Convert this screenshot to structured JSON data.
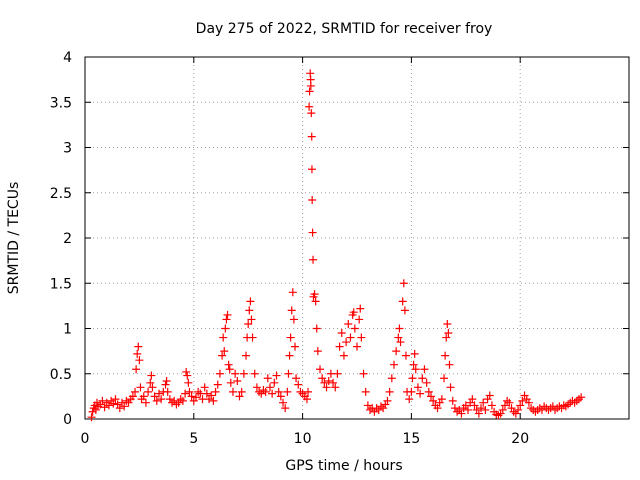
{
  "chart_data": {
    "type": "scatter",
    "title": "Day 275 of 2022, SRMTID for receiver froy",
    "xlabel": "GPS time / hours",
    "ylabel": "SRMTID / TECUs",
    "xlim": [
      0,
      25
    ],
    "ylim": [
      0,
      4
    ],
    "x_ticks": [
      0,
      5,
      10,
      15,
      20
    ],
    "x_tick_labels": [
      "0",
      "5",
      "10",
      "15",
      "20"
    ],
    "y_ticks": [
      0,
      0.5,
      1,
      1.5,
      2,
      2.5,
      3,
      3.5,
      4
    ],
    "y_tick_labels": [
      "0",
      "0.5",
      "1",
      "1.5",
      "2",
      "2.5",
      "3",
      "3.5",
      "4"
    ],
    "grid": true,
    "marker": "+",
    "series_color": "#ff0000",
    "points": [
      [
        0.3,
        0.02
      ],
      [
        0.35,
        0.08
      ],
      [
        0.4,
        0.12
      ],
      [
        0.45,
        0.15
      ],
      [
        0.5,
        0.1
      ],
      [
        0.55,
        0.18
      ],
      [
        0.6,
        0.14
      ],
      [
        0.7,
        0.16
      ],
      [
        0.8,
        0.2
      ],
      [
        0.9,
        0.13
      ],
      [
        1.0,
        0.18
      ],
      [
        1.1,
        0.15
      ],
      [
        1.2,
        0.2
      ],
      [
        1.3,
        0.17
      ],
      [
        1.4,
        0.22
      ],
      [
        1.5,
        0.16
      ],
      [
        1.6,
        0.12
      ],
      [
        1.7,
        0.18
      ],
      [
        1.8,
        0.14
      ],
      [
        1.9,
        0.2
      ],
      [
        2.0,
        0.18
      ],
      [
        2.1,
        0.22
      ],
      [
        2.2,
        0.25
      ],
      [
        2.3,
        0.3
      ],
      [
        2.35,
        0.55
      ],
      [
        2.4,
        0.72
      ],
      [
        2.45,
        0.8
      ],
      [
        2.5,
        0.65
      ],
      [
        2.55,
        0.35
      ],
      [
        2.6,
        0.22
      ],
      [
        2.7,
        0.25
      ],
      [
        2.8,
        0.18
      ],
      [
        2.9,
        0.3
      ],
      [
        3.0,
        0.4
      ],
      [
        3.05,
        0.48
      ],
      [
        3.1,
        0.35
      ],
      [
        3.2,
        0.25
      ],
      [
        3.3,
        0.2
      ],
      [
        3.4,
        0.28
      ],
      [
        3.5,
        0.22
      ],
      [
        3.6,
        0.3
      ],
      [
        3.7,
        0.38
      ],
      [
        3.75,
        0.42
      ],
      [
        3.8,
        0.3
      ],
      [
        3.9,
        0.22
      ],
      [
        4.0,
        0.18
      ],
      [
        4.1,
        0.2
      ],
      [
        4.2,
        0.16
      ],
      [
        4.3,
        0.18
      ],
      [
        4.4,
        0.22
      ],
      [
        4.5,
        0.2
      ],
      [
        4.6,
        0.28
      ],
      [
        4.65,
        0.52
      ],
      [
        4.7,
        0.48
      ],
      [
        4.75,
        0.4
      ],
      [
        4.8,
        0.3
      ],
      [
        4.9,
        0.25
      ],
      [
        5.0,
        0.2
      ],
      [
        5.1,
        0.24
      ],
      [
        5.2,
        0.3
      ],
      [
        5.3,
        0.28
      ],
      [
        5.4,
        0.22
      ],
      [
        5.5,
        0.35
      ],
      [
        5.6,
        0.28
      ],
      [
        5.7,
        0.22
      ],
      [
        5.8,
        0.26
      ],
      [
        5.9,
        0.2
      ],
      [
        6.0,
        0.3
      ],
      [
        6.1,
        0.38
      ],
      [
        6.2,
        0.5
      ],
      [
        6.3,
        0.7
      ],
      [
        6.35,
        0.9
      ],
      [
        6.4,
        0.75
      ],
      [
        6.45,
        1.0
      ],
      [
        6.5,
        1.1
      ],
      [
        6.55,
        1.15
      ],
      [
        6.6,
        0.6
      ],
      [
        6.65,
        0.55
      ],
      [
        6.7,
        0.4
      ],
      [
        6.8,
        0.3
      ],
      [
        6.9,
        0.5
      ],
      [
        7.0,
        0.42
      ],
      [
        7.1,
        0.25
      ],
      [
        7.2,
        0.3
      ],
      [
        7.3,
        0.5
      ],
      [
        7.4,
        0.7
      ],
      [
        7.45,
        0.9
      ],
      [
        7.5,
        1.05
      ],
      [
        7.55,
        1.2
      ],
      [
        7.6,
        1.3
      ],
      [
        7.65,
        1.1
      ],
      [
        7.7,
        0.9
      ],
      [
        7.8,
        0.5
      ],
      [
        7.9,
        0.35
      ],
      [
        8.0,
        0.3
      ],
      [
        8.1,
        0.28
      ],
      [
        8.2,
        0.32
      ],
      [
        8.3,
        0.3
      ],
      [
        8.4,
        0.45
      ],
      [
        8.5,
        0.35
      ],
      [
        8.6,
        0.28
      ],
      [
        8.7,
        0.4
      ],
      [
        8.8,
        0.48
      ],
      [
        8.9,
        0.3
      ],
      [
        9.0,
        0.25
      ],
      [
        9.1,
        0.18
      ],
      [
        9.2,
        0.12
      ],
      [
        9.3,
        0.3
      ],
      [
        9.35,
        0.5
      ],
      [
        9.4,
        0.7
      ],
      [
        9.45,
        0.9
      ],
      [
        9.5,
        1.2
      ],
      [
        9.55,
        1.4
      ],
      [
        9.6,
        1.1
      ],
      [
        9.65,
        0.8
      ],
      [
        9.7,
        0.45
      ],
      [
        9.8,
        0.38
      ],
      [
        9.9,
        0.3
      ],
      [
        10.0,
        0.28
      ],
      [
        10.1,
        0.25
      ],
      [
        10.2,
        0.22
      ],
      [
        10.25,
        0.3
      ],
      [
        10.3,
        3.45
      ],
      [
        10.32,
        3.62
      ],
      [
        10.35,
        3.82
      ],
      [
        10.37,
        3.75
      ],
      [
        10.38,
        3.68
      ],
      [
        10.4,
        3.38
      ],
      [
        10.42,
        3.12
      ],
      [
        10.43,
        2.76
      ],
      [
        10.44,
        2.42
      ],
      [
        10.46,
        2.06
      ],
      [
        10.48,
        1.76
      ],
      [
        10.5,
        1.35
      ],
      [
        10.55,
        1.38
      ],
      [
        10.6,
        1.3
      ],
      [
        10.65,
        1.0
      ],
      [
        10.7,
        0.75
      ],
      [
        10.8,
        0.55
      ],
      [
        10.9,
        0.45
      ],
      [
        11.0,
        0.4
      ],
      [
        11.1,
        0.35
      ],
      [
        11.2,
        0.42
      ],
      [
        11.3,
        0.5
      ],
      [
        11.4,
        0.4
      ],
      [
        11.5,
        0.35
      ],
      [
        11.6,
        0.5
      ],
      [
        11.7,
        0.8
      ],
      [
        11.8,
        0.95
      ],
      [
        11.9,
        0.7
      ],
      [
        12.0,
        0.85
      ],
      [
        12.1,
        1.05
      ],
      [
        12.2,
        0.9
      ],
      [
        12.3,
        1.15
      ],
      [
        12.35,
        1.18
      ],
      [
        12.4,
        1.0
      ],
      [
        12.5,
        0.8
      ],
      [
        12.6,
        1.1
      ],
      [
        12.65,
        1.22
      ],
      [
        12.7,
        0.9
      ],
      [
        12.8,
        0.5
      ],
      [
        12.9,
        0.3
      ],
      [
        13.0,
        0.15
      ],
      [
        13.1,
        0.1
      ],
      [
        13.2,
        0.12
      ],
      [
        13.3,
        0.08
      ],
      [
        13.4,
        0.12
      ],
      [
        13.5,
        0.1
      ],
      [
        13.6,
        0.14
      ],
      [
        13.7,
        0.12
      ],
      [
        13.8,
        0.16
      ],
      [
        13.9,
        0.2
      ],
      [
        14.0,
        0.3
      ],
      [
        14.1,
        0.45
      ],
      [
        14.2,
        0.6
      ],
      [
        14.3,
        0.75
      ],
      [
        14.4,
        0.9
      ],
      [
        14.45,
        1.0
      ],
      [
        14.5,
        0.85
      ],
      [
        14.6,
        1.3
      ],
      [
        14.65,
        1.5
      ],
      [
        14.7,
        1.2
      ],
      [
        14.75,
        0.7
      ],
      [
        14.8,
        0.3
      ],
      [
        14.9,
        0.22
      ],
      [
        15.0,
        0.3
      ],
      [
        15.05,
        0.45
      ],
      [
        15.1,
        0.6
      ],
      [
        15.15,
        0.72
      ],
      [
        15.2,
        0.55
      ],
      [
        15.3,
        0.35
      ],
      [
        15.4,
        0.28
      ],
      [
        15.5,
        0.45
      ],
      [
        15.6,
        0.55
      ],
      [
        15.7,
        0.4
      ],
      [
        15.8,
        0.3
      ],
      [
        15.9,
        0.25
      ],
      [
        16.0,
        0.2
      ],
      [
        16.1,
        0.15
      ],
      [
        16.2,
        0.12
      ],
      [
        16.3,
        0.18
      ],
      [
        16.4,
        0.22
      ],
      [
        16.5,
        0.45
      ],
      [
        16.55,
        0.7
      ],
      [
        16.6,
        0.9
      ],
      [
        16.65,
        1.05
      ],
      [
        16.7,
        0.95
      ],
      [
        16.75,
        0.6
      ],
      [
        16.8,
        0.35
      ],
      [
        16.9,
        0.2
      ],
      [
        17.0,
        0.12
      ],
      [
        17.1,
        0.08
      ],
      [
        17.2,
        0.1
      ],
      [
        17.3,
        0.06
      ],
      [
        17.4,
        0.12
      ],
      [
        17.5,
        0.15
      ],
      [
        17.6,
        0.1
      ],
      [
        17.7,
        0.18
      ],
      [
        17.8,
        0.22
      ],
      [
        17.9,
        0.15
      ],
      [
        18.0,
        0.1
      ],
      [
        18.1,
        0.06
      ],
      [
        18.2,
        0.12
      ],
      [
        18.3,
        0.18
      ],
      [
        18.4,
        0.1
      ],
      [
        18.5,
        0.22
      ],
      [
        18.6,
        0.26
      ],
      [
        18.7,
        0.15
      ],
      [
        18.8,
        0.08
      ],
      [
        18.9,
        0.05
      ],
      [
        19.0,
        0.04
      ],
      [
        19.1,
        0.06
      ],
      [
        19.2,
        0.1
      ],
      [
        19.3,
        0.15
      ],
      [
        19.4,
        0.2
      ],
      [
        19.5,
        0.18
      ],
      [
        19.6,
        0.12
      ],
      [
        19.7,
        0.08
      ],
      [
        19.8,
        0.06
      ],
      [
        19.9,
        0.1
      ],
      [
        20.0,
        0.15
      ],
      [
        20.1,
        0.2
      ],
      [
        20.2,
        0.26
      ],
      [
        20.3,
        0.22
      ],
      [
        20.4,
        0.18
      ],
      [
        20.5,
        0.12
      ],
      [
        20.6,
        0.1
      ],
      [
        20.7,
        0.08
      ],
      [
        20.8,
        0.1
      ],
      [
        20.9,
        0.12
      ],
      [
        21.0,
        0.1
      ],
      [
        21.1,
        0.14
      ],
      [
        21.2,
        0.12
      ],
      [
        21.3,
        0.1
      ],
      [
        21.4,
        0.12
      ],
      [
        21.5,
        0.14
      ],
      [
        21.6,
        0.1
      ],
      [
        21.7,
        0.12
      ],
      [
        21.8,
        0.14
      ],
      [
        21.9,
        0.12
      ],
      [
        22.0,
        0.15
      ],
      [
        22.1,
        0.14
      ],
      [
        22.2,
        0.16
      ],
      [
        22.3,
        0.18
      ],
      [
        22.4,
        0.2
      ],
      [
        22.5,
        0.18
      ],
      [
        22.6,
        0.2
      ],
      [
        22.7,
        0.22
      ],
      [
        22.8,
        0.24
      ]
    ]
  }
}
